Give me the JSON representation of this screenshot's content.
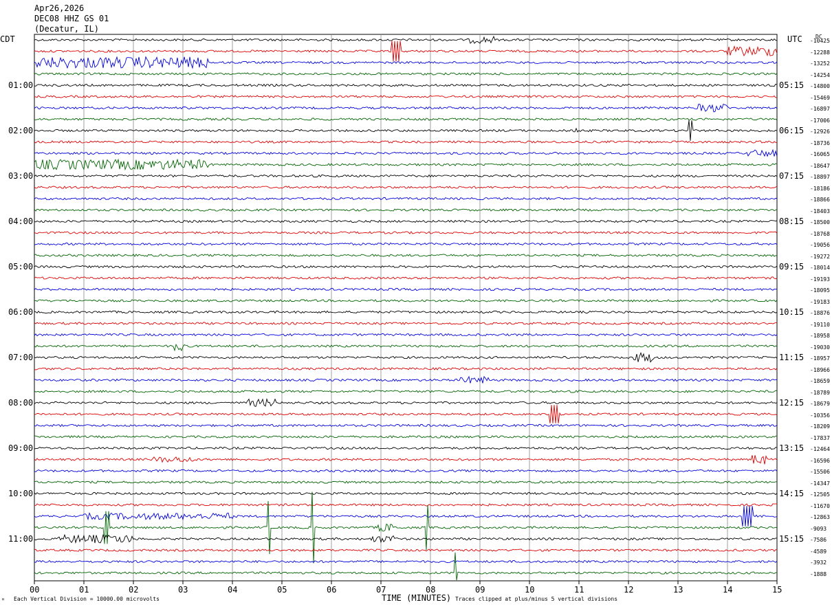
{
  "header": {
    "date": "Apr26,2026",
    "station": "DEC08 HHZ GS 01",
    "location": "(Decatur, IL)"
  },
  "left_zone": "CDT",
  "right_zone": "UTC",
  "footer": {
    "xlabel": "TIME (MINUTES)",
    "scale_note": "Each Vertical Division = 10000.00 microvolts",
    "clip_note": "Traces clipped at plus/minus 5 vertical divisions",
    "corner_mark": "ᴹ"
  },
  "chart_data": {
    "type": "line",
    "title": "DEC08 HHZ GS 01",
    "xlabel": "TIME (MINUTES)",
    "xlim": [
      0,
      15
    ],
    "x_ticks": [
      "00",
      "01",
      "02",
      "03",
      "04",
      "05",
      "06",
      "07",
      "08",
      "09",
      "10",
      "11",
      "12",
      "13",
      "14",
      "15"
    ],
    "minutes_per_trace": 15,
    "trace_colors": [
      "#000000",
      "#e00000",
      "#0000e0",
      "#006400"
    ],
    "left_hour_labels": [
      "01:00",
      "02:00",
      "03:00",
      "04:00",
      "05:00",
      "06:00",
      "07:00",
      "08:00",
      "09:00",
      "10:00",
      "11:00"
    ],
    "right_hour_labels": [
      "05:15",
      "06:15",
      "07:15",
      "08:15",
      "09:15",
      "10:15",
      "11:15",
      "12:15",
      "13:15",
      "14:15",
      "15:15"
    ],
    "trace_dc_offsets": [
      "-10425",
      "-12288",
      "-13252",
      "-14254",
      "-14800",
      "-15469",
      "-16897",
      "-17006",
      "-12926",
      "-18736",
      "-16065",
      "-18647",
      "-18897",
      "-18186",
      "-18866",
      "-18403",
      "-18500",
      "-18768",
      "-19056",
      "-19272",
      "-18014",
      "-19193",
      "-18095",
      "-19183",
      "-18876",
      "-19110",
      "-18958",
      "-19030",
      "-18957",
      "-18966",
      "-18659",
      "-18789",
      "-18679",
      "-10356",
      "-18209",
      "-17837",
      "-12464",
      "-16596",
      "-15506",
      "-14347",
      "-12505",
      "-11670",
      "-12863",
      "-9093",
      "-7586",
      "-4589",
      "-3932",
      "-1888"
    ],
    "dc_header": "DC",
    "events": [
      {
        "trace": 2,
        "start_min": 0.0,
        "end_min": 3.5,
        "amp": 1.5,
        "kind": "noise"
      },
      {
        "trace": 1,
        "start_min": 14.0,
        "end_min": 15.0,
        "amp": 1.2,
        "kind": "noise"
      },
      {
        "trace": 1,
        "start_min": 7.2,
        "end_min": 7.4,
        "amp": 1.0,
        "kind": "spike"
      },
      {
        "trace": 0,
        "start_min": 8.8,
        "end_min": 9.3,
        "amp": 0.8,
        "kind": "burst"
      },
      {
        "trace": 6,
        "start_min": 13.4,
        "end_min": 14.0,
        "amp": 1.0,
        "kind": "burst"
      },
      {
        "trace": 8,
        "start_min": 10.8,
        "end_min": 11.0,
        "amp": 0.6,
        "kind": "burst"
      },
      {
        "trace": 8,
        "start_min": 13.2,
        "end_min": 13.3,
        "amp": 1.0,
        "kind": "spike"
      },
      {
        "trace": 10,
        "start_min": 14.4,
        "end_min": 15.0,
        "amp": 0.8,
        "kind": "burst"
      },
      {
        "trace": 11,
        "start_min": 0.0,
        "end_min": 3.5,
        "amp": 1.3,
        "kind": "noise"
      },
      {
        "trace": 27,
        "start_min": 2.8,
        "end_min": 3.1,
        "amp": 1.2,
        "kind": "burst"
      },
      {
        "trace": 28,
        "start_min": 12.1,
        "end_min": 12.5,
        "amp": 1.2,
        "kind": "burst"
      },
      {
        "trace": 30,
        "start_min": 8.6,
        "end_min": 9.2,
        "amp": 0.8,
        "kind": "burst"
      },
      {
        "trace": 32,
        "start_min": 4.3,
        "end_min": 4.9,
        "amp": 0.9,
        "kind": "burst"
      },
      {
        "trace": 33,
        "start_min": 10.4,
        "end_min": 10.6,
        "amp": 0.9,
        "kind": "spike"
      },
      {
        "trace": 37,
        "start_min": 14.5,
        "end_min": 14.8,
        "amp": 1.3,
        "kind": "burst"
      },
      {
        "trace": 37,
        "start_min": 2.4,
        "end_min": 3.2,
        "amp": 0.6,
        "kind": "burst"
      },
      {
        "trace": 42,
        "start_min": 1.0,
        "end_min": 4.0,
        "amp": 0.7,
        "kind": "noise"
      },
      {
        "trace": 42,
        "start_min": 14.3,
        "end_min": 14.5,
        "amp": 1.0,
        "kind": "spike"
      },
      {
        "trace": 43,
        "start_min": 1.4,
        "end_min": 1.5,
        "amp": 1.6,
        "kind": "spike"
      },
      {
        "trace": 43,
        "start_min": 4.7,
        "end_min": 4.75,
        "amp": 2.6,
        "kind": "spike"
      },
      {
        "trace": 43,
        "start_min": 5.6,
        "end_min": 5.65,
        "amp": 3.5,
        "kind": "spike"
      },
      {
        "trace": 43,
        "start_min": 7.9,
        "end_min": 7.95,
        "amp": 2.2,
        "kind": "spike"
      },
      {
        "trace": 43,
        "start_min": 6.9,
        "end_min": 7.3,
        "amp": 1.0,
        "kind": "burst"
      },
      {
        "trace": 44,
        "start_min": 0.5,
        "end_min": 2.0,
        "amp": 1.0,
        "kind": "burst"
      },
      {
        "trace": 44,
        "start_min": 6.8,
        "end_min": 7.3,
        "amp": 0.8,
        "kind": "burst"
      },
      {
        "trace": 47,
        "start_min": 8.5,
        "end_min": 8.55,
        "amp": 2.0,
        "kind": "spike"
      }
    ]
  }
}
